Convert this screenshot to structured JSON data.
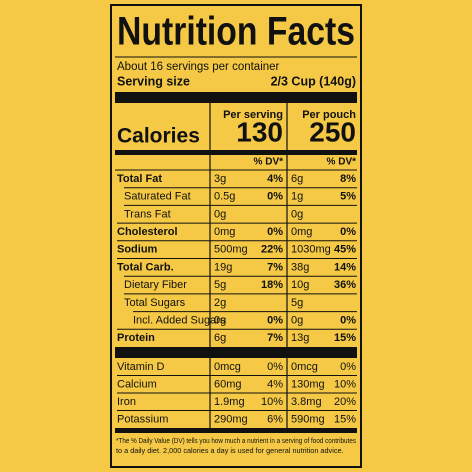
{
  "label": {
    "title": "Nutrition Facts",
    "servings": "About 16 servings per container",
    "serving_size_label": "Serving size",
    "serving_size": "2/3 Cup (140g)",
    "per_serving": "Per serving",
    "per_pouch": "Per pouch",
    "calories_label": "Calories",
    "calories_serving": "130",
    "calories_pouch": "250",
    "dv_header": "% DV*",
    "rows": [
      {
        "name": "Total Fat",
        "serving_amount": "3g",
        "serving_dv": "4%",
        "pouch_amount": "6g",
        "pouch_dv": "8%"
      },
      {
        "name": "Saturated Fat",
        "serving_amount": "0.5g",
        "serving_dv": "0%",
        "pouch_amount": "1g",
        "pouch_dv": "5%"
      },
      {
        "name": "Trans Fat",
        "serving_amount": "0g",
        "pouch_amount": "0g"
      },
      {
        "name": "Cholesterol",
        "serving_amount": "0mg",
        "serving_dv": "0%",
        "pouch_amount": "0mg",
        "pouch_dv": "0%"
      },
      {
        "name": "Sodium",
        "serving_amount": "500mg",
        "serving_dv": "22%",
        "pouch_amount": "1030mg",
        "pouch_dv": "45%"
      },
      {
        "name": "Total Carb.",
        "serving_amount": "19g",
        "serving_dv": "7%",
        "pouch_amount": "38g",
        "pouch_dv": "14%"
      },
      {
        "name": "Dietary Fiber",
        "serving_amount": "5g",
        "serving_dv": "18%",
        "pouch_amount": "10g",
        "pouch_dv": "36%"
      },
      {
        "name": "Total Sugars",
        "serving_amount": "2g",
        "pouch_amount": "5g"
      },
      {
        "name": "Incl. Added Sugars",
        "serving_amount": "0g",
        "serving_dv": "0%",
        "pouch_amount": "0g",
        "pouch_dv": "0%"
      },
      {
        "name": "Protein",
        "serving_amount": "6g",
        "serving_dv": "7%",
        "pouch_amount": "13g",
        "pouch_dv": "15%"
      }
    ],
    "vitamins": [
      {
        "name": "Vitamin D",
        "serving_amount": "0mcg",
        "serving_dv": "0%",
        "pouch_amount": "0mcg",
        "pouch_dv": "0%"
      },
      {
        "name": "Calcium",
        "serving_amount": "60mg",
        "serving_dv": "4%",
        "pouch_amount": "130mg",
        "pouch_dv": "10%"
      },
      {
        "name": "Iron",
        "serving_amount": "1.9mg",
        "serving_dv": "10%",
        "pouch_amount": "3.8mg",
        "pouch_dv": "20%"
      },
      {
        "name": "Potassium",
        "serving_amount": "290mg",
        "serving_dv": "6%",
        "pouch_amount": "590mg",
        "pouch_dv": "15%"
      }
    ],
    "footnote": [
      "*The % Daily Value (DV) tells you how much a nutrient in a serving of food contributes",
      "to a daily diet. 2,000 calories a day is used for general nutrition advice."
    ]
  }
}
